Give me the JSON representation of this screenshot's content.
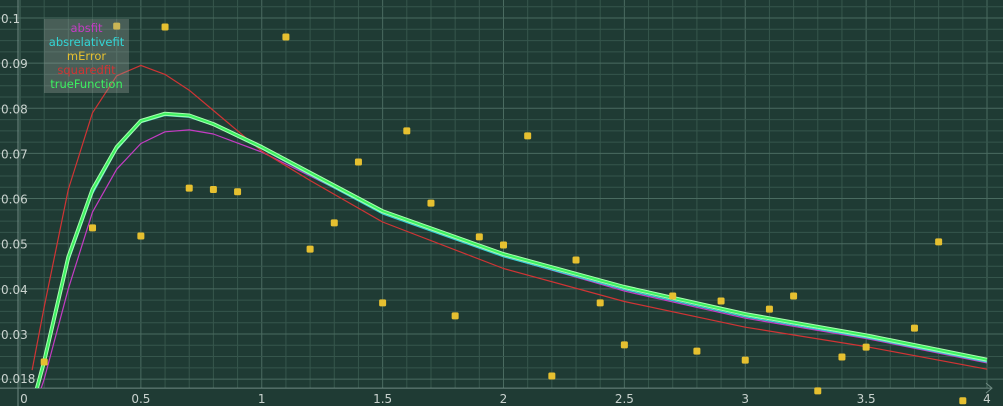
{
  "chart_data": {
    "type": "line",
    "title": "",
    "xlabel": "",
    "ylabel": "",
    "xlim": [
      -0.07,
      4.06
    ],
    "ylim": [
      0.018,
      0.104
    ],
    "grid": true,
    "legend_placement": "top-left",
    "x_ticks": [
      "0",
      "0.5",
      "1",
      "1.5",
      "2",
      "2.5",
      "3",
      "3.5",
      "4"
    ],
    "y_ticks": [
      "0.018",
      "0.03",
      "0.04",
      "0.05",
      "0.06",
      "0.07",
      "0.08",
      "0.09",
      "0.1"
    ],
    "series": [
      {
        "name": "absfit",
        "kind": "line",
        "color": "#c43cc4",
        "x": [
          0.05,
          0.1,
          0.2,
          0.3,
          0.4,
          0.5,
          0.6,
          0.7,
          0.8,
          1.0,
          1.2,
          1.5,
          2.0,
          2.5,
          3.0,
          3.5,
          4.0
        ],
        "y": [
          0.012,
          0.02,
          0.04,
          0.057,
          0.0665,
          0.0722,
          0.0748,
          0.0752,
          0.0743,
          0.0703,
          0.065,
          0.057,
          0.0472,
          0.0395,
          0.0335,
          0.029,
          0.0236
        ]
      },
      {
        "name": "absrelativefit",
        "kind": "line",
        "color": "#33d6d6",
        "x": [
          0.05,
          0.1,
          0.2,
          0.3,
          0.4,
          0.5,
          0.6,
          0.7,
          0.8,
          1.0,
          1.2,
          1.5,
          2.0,
          2.5,
          3.0,
          3.5,
          4.0
        ],
        "y": [
          0.014,
          0.023,
          0.046,
          0.061,
          0.0708,
          0.0768,
          0.0784,
          0.078,
          0.0762,
          0.071,
          0.0652,
          0.0566,
          0.0471,
          0.0398,
          0.0338,
          0.0292,
          0.0238
        ]
      },
      {
        "name": "mError",
        "kind": "scatter",
        "color": "#e6c030",
        "x": [
          0.1,
          0.3,
          0.4,
          0.5,
          0.6,
          0.7,
          0.8,
          0.9,
          1.1,
          1.2,
          1.3,
          1.4,
          1.5,
          1.6,
          1.7,
          1.8,
          1.9,
          2.0,
          2.1,
          2.2,
          2.3,
          2.4,
          2.5,
          2.7,
          2.8,
          2.9,
          3.0,
          3.1,
          3.2,
          3.3,
          3.4,
          3.5,
          3.7,
          3.8,
          3.9
        ],
        "y": [
          0.0238,
          0.0535,
          0.0982,
          0.0517,
          0.098,
          0.0623,
          0.062,
          0.0615,
          0.0958,
          0.0488,
          0.0546,
          0.0681,
          0.0369,
          0.075,
          0.059,
          0.034,
          0.0515,
          0.0497,
          0.0739,
          0.0207,
          0.0464,
          0.0369,
          0.0276,
          0.0384,
          0.0262,
          0.0373,
          0.0242,
          0.0355,
          0.0384,
          0.0174,
          0.0249,
          0.0271,
          0.0313,
          0.0504,
          0.0152
        ]
      },
      {
        "name": "squaredfit",
        "kind": "line",
        "color": "#d03434",
        "x": [
          0.05,
          0.1,
          0.2,
          0.3,
          0.4,
          0.5,
          0.6,
          0.7,
          0.8,
          1.0,
          1.2,
          1.5,
          2.0,
          2.5,
          3.0,
          3.5,
          4.0
        ],
        "y": [
          0.022,
          0.036,
          0.062,
          0.079,
          0.0872,
          0.0895,
          0.0875,
          0.084,
          0.0795,
          0.0705,
          0.064,
          0.0548,
          0.0445,
          0.0372,
          0.0315,
          0.0272,
          0.0222
        ]
      },
      {
        "name": "trueFunction",
        "kind": "line",
        "color": "#3cf060",
        "x": [
          0.05,
          0.1,
          0.2,
          0.3,
          0.4,
          0.5,
          0.6,
          0.7,
          0.8,
          1.0,
          1.2,
          1.5,
          2.0,
          2.5,
          3.0,
          3.5,
          4.0
        ],
        "y": [
          0.014,
          0.024,
          0.047,
          0.062,
          0.0714,
          0.0772,
          0.0788,
          0.0784,
          0.0765,
          0.0714,
          0.0657,
          0.0572,
          0.0477,
          0.0404,
          0.0344,
          0.0297,
          0.0243
        ]
      }
    ]
  }
}
